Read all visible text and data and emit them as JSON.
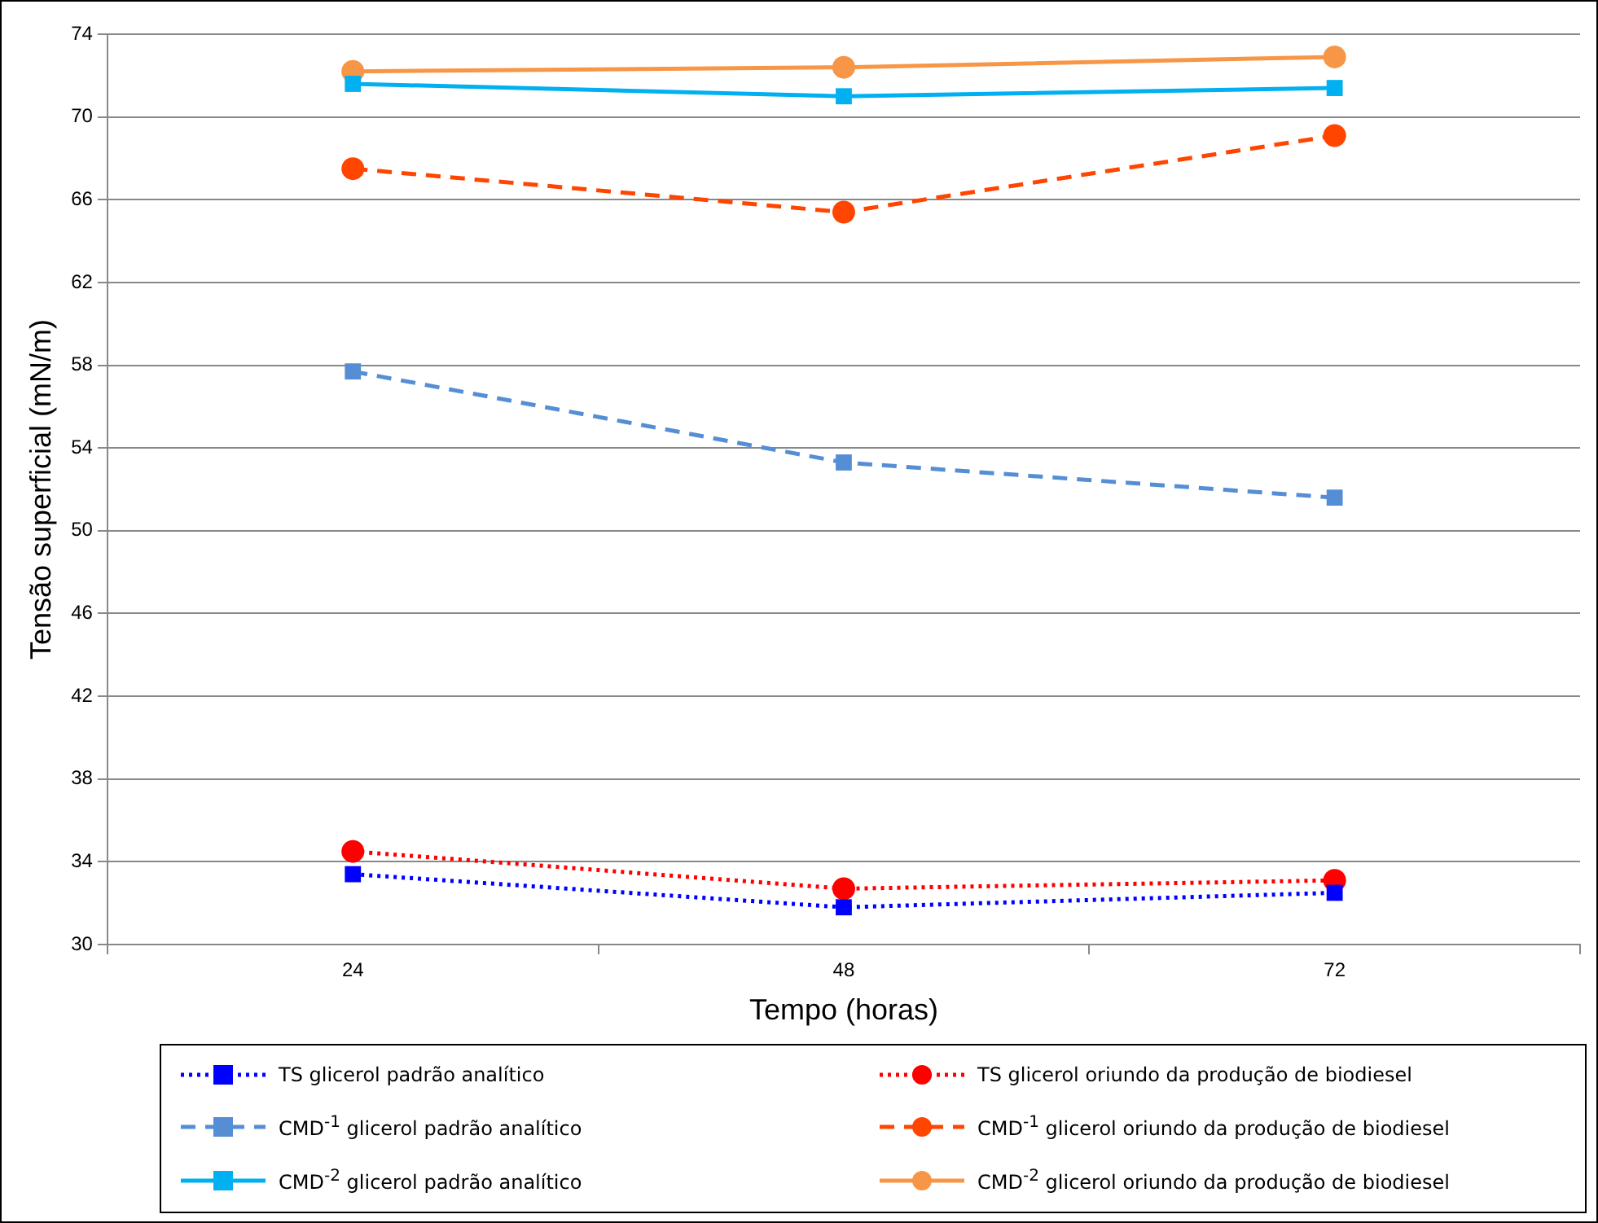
{
  "chart_data": {
    "type": "line",
    "xlabel": "Tempo (horas)",
    "ylabel": "Tensão superficial (mN/m)",
    "categories": [
      "24",
      "48",
      "72"
    ],
    "ylim": [
      30,
      74
    ],
    "yticks": [
      30,
      34,
      38,
      42,
      46,
      50,
      54,
      58,
      62,
      66,
      70,
      74
    ],
    "grid": "y",
    "legend": "bottom",
    "series": [
      {
        "name": "TS  glicerol padrão analítico",
        "color": "#0000ff",
        "values": [
          33.4,
          31.8,
          32.5
        ],
        "marker": "square",
        "line_style": "dotted"
      },
      {
        "name": "TS glicerol oriundo da produção de biodiesel",
        "color": "#ff0000",
        "values": [
          34.5,
          32.7,
          33.1
        ],
        "marker": "circle",
        "line_style": "dotted"
      },
      {
        "name": "CMD$^{-1}$ glicerol padrão analítico",
        "color": "#558ed5",
        "values": [
          57.7,
          53.3,
          51.6
        ],
        "marker": "square",
        "line_style": "dashed"
      },
      {
        "name": "CMD$^{-1}$ glicerol oriundo da produção de biodiesel",
        "color": "#ff4500",
        "values": [
          67.5,
          65.4,
          69.1
        ],
        "marker": "circle",
        "line_style": "dashed"
      },
      {
        "name": "CMD$^{-2}$ glicerol padrão analítico",
        "color": "#00b0f0",
        "values": [
          71.6,
          71.0,
          71.4
        ],
        "marker": "square",
        "line_style": "solid"
      },
      {
        "name": "CMD$^{-2}$ glicerol oriundo da produção de biodiesel",
        "color": "#f79646",
        "values": [
          72.2,
          72.4,
          72.9
        ],
        "marker": "circle",
        "line_style": "solid"
      }
    ]
  }
}
